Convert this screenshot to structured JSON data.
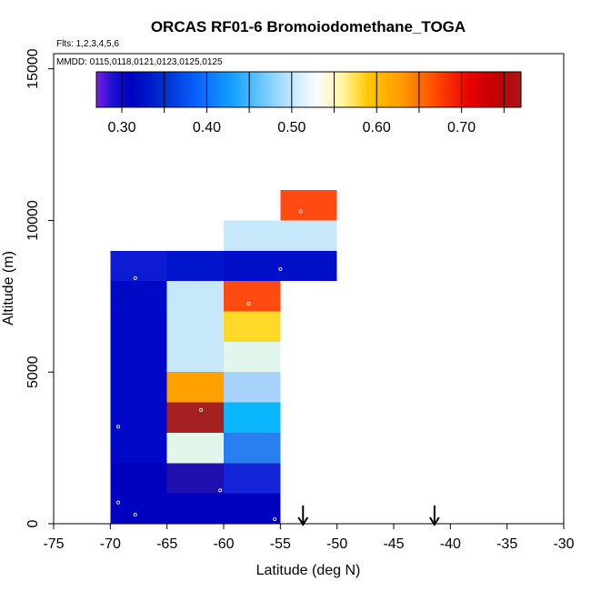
{
  "chart_data": {
    "type": "heatmap",
    "title": "ORCAS RF01-6 Bromoiodomethane_TOGA",
    "flights_note": "Flts: 1,2,3,4,5,6",
    "dates_note": "MMDD: 0115,0118,0121,0123,0125,0125",
    "xlabel": "Latitude (deg N)",
    "ylabel": "Altitude (m)",
    "xlim": [
      -75,
      -30
    ],
    "ylim": [
      0,
      15500
    ],
    "x_ticks": [
      -75,
      -70,
      -65,
      -60,
      -55,
      -50,
      -45,
      -40,
      -35,
      -30
    ],
    "y_ticks": [
      0,
      5000,
      10000,
      15000
    ],
    "colorbar": {
      "range": [
        0.27,
        0.77
      ],
      "tick_values": [
        0.3,
        0.4,
        0.5,
        0.6,
        0.7
      ],
      "tick_labels": [
        "0.30",
        "0.40",
        "0.50",
        "0.60",
        "0.70"
      ],
      "boundaries": [
        0.3,
        0.35,
        0.4,
        0.45,
        0.5,
        0.55,
        0.6,
        0.65,
        0.7,
        0.75
      ],
      "color_stops": [
        {
          "v": 0.27,
          "c": "#7a1fe0"
        },
        {
          "v": 0.29,
          "c": "#1a0fd0"
        },
        {
          "v": 0.31,
          "c": "#0000c0"
        },
        {
          "v": 0.35,
          "c": "#0030d0"
        },
        {
          "v": 0.39,
          "c": "#0a64ff"
        },
        {
          "v": 0.43,
          "c": "#14a0ff"
        },
        {
          "v": 0.47,
          "c": "#78cdff"
        },
        {
          "v": 0.51,
          "c": "#d8efff"
        },
        {
          "v": 0.53,
          "c": "#fbfbff"
        },
        {
          "v": 0.56,
          "c": "#fff5a0"
        },
        {
          "v": 0.59,
          "c": "#ffc800"
        },
        {
          "v": 0.63,
          "c": "#ff9a00"
        },
        {
          "v": 0.67,
          "c": "#ff4800"
        },
        {
          "v": 0.71,
          "c": "#e80000"
        },
        {
          "v": 0.74,
          "c": "#c00000"
        },
        {
          "v": 0.77,
          "c": "#a81818"
        }
      ]
    },
    "cells": [
      {
        "lat": [
          -70,
          -65
        ],
        "alt": [
          8000,
          9000
        ],
        "value": 0.315,
        "color": "#0d1cd2"
      },
      {
        "lat": [
          -70,
          -65
        ],
        "alt": [
          7000,
          8000
        ],
        "value": 0.305,
        "color": "#0009c6"
      },
      {
        "lat": [
          -70,
          -65
        ],
        "alt": [
          6000,
          7000
        ],
        "value": 0.302,
        "color": "#0007c8"
      },
      {
        "lat": [
          -70,
          -65
        ],
        "alt": [
          5000,
          6000
        ],
        "value": 0.302,
        "color": "#0007c8"
      },
      {
        "lat": [
          -70,
          -65
        ],
        "alt": [
          4000,
          5000
        ],
        "value": 0.302,
        "color": "#0007c8"
      },
      {
        "lat": [
          -70,
          -65
        ],
        "alt": [
          3000,
          4000
        ],
        "value": 0.302,
        "color": "#0007c8"
      },
      {
        "lat": [
          -70,
          -65
        ],
        "alt": [
          2000,
          3000
        ],
        "value": 0.302,
        "color": "#0007c8"
      },
      {
        "lat": [
          -70,
          -65
        ],
        "alt": [
          1000,
          2000
        ],
        "value": 0.3,
        "color": "#0002c0"
      },
      {
        "lat": [
          -70,
          -65
        ],
        "alt": [
          0,
          1000
        ],
        "value": 0.3,
        "color": "#0002c0"
      },
      {
        "lat": [
          -65,
          -60
        ],
        "alt": [
          8000,
          9000
        ],
        "value": 0.305,
        "color": "#0015cc"
      },
      {
        "lat": [
          -65,
          -60
        ],
        "alt": [
          7000,
          8000
        ],
        "value": 0.51,
        "color": "#c7e7fb"
      },
      {
        "lat": [
          -65,
          -60
        ],
        "alt": [
          6000,
          7000
        ],
        "value": 0.51,
        "color": "#c7e7fb"
      },
      {
        "lat": [
          -65,
          -60
        ],
        "alt": [
          5000,
          6000
        ],
        "value": 0.51,
        "color": "#c7e7fb"
      },
      {
        "lat": [
          -65,
          -60
        ],
        "alt": [
          4000,
          5000
        ],
        "value": 0.625,
        "color": "#ffa000"
      },
      {
        "lat": [
          -65,
          -60
        ],
        "alt": [
          3000,
          4000
        ],
        "value": 0.765,
        "color": "#a52020"
      },
      {
        "lat": [
          -65,
          -60
        ],
        "alt": [
          2000,
          3000
        ],
        "value": 0.53,
        "color": "#e2f7ec"
      },
      {
        "lat": [
          -65,
          -60
        ],
        "alt": [
          1000,
          2000
        ],
        "value": 0.29,
        "color": "#2010b0"
      },
      {
        "lat": [
          -65,
          -60
        ],
        "alt": [
          0,
          1000
        ],
        "value": 0.3,
        "color": "#0002c0"
      },
      {
        "lat": [
          -60,
          -55
        ],
        "alt": [
          9000,
          10000
        ],
        "value": 0.51,
        "color": "#c7e7fb"
      },
      {
        "lat": [
          -60,
          -55
        ],
        "alt": [
          8000,
          9000
        ],
        "value": 0.31,
        "color": "#0010c8"
      },
      {
        "lat": [
          -60,
          -55
        ],
        "alt": [
          7000,
          8000
        ],
        "value": 0.68,
        "color": "#ff4a12"
      },
      {
        "lat": [
          -60,
          -55
        ],
        "alt": [
          6000,
          7000
        ],
        "value": 0.595,
        "color": "#ffd928"
      },
      {
        "lat": [
          -60,
          -55
        ],
        "alt": [
          5000,
          6000
        ],
        "value": 0.53,
        "color": "#e2f7ec"
      },
      {
        "lat": [
          -60,
          -55
        ],
        "alt": [
          4000,
          5000
        ],
        "value": 0.48,
        "color": "#a7d3fb"
      },
      {
        "lat": [
          -60,
          -55
        ],
        "alt": [
          3000,
          4000
        ],
        "value": 0.44,
        "color": "#0ab7ff"
      },
      {
        "lat": [
          -60,
          -55
        ],
        "alt": [
          2000,
          3000
        ],
        "value": 0.39,
        "color": "#2a7ff0"
      },
      {
        "lat": [
          -60,
          -55
        ],
        "alt": [
          1000,
          2000
        ],
        "value": 0.33,
        "color": "#1224d6"
      },
      {
        "lat": [
          -60,
          -55
        ],
        "alt": [
          0,
          1000
        ],
        "value": 0.3,
        "color": "#0002c0"
      },
      {
        "lat": [
          -55,
          -50
        ],
        "alt": [
          10000,
          11000
        ],
        "value": 0.68,
        "color": "#ff4a12"
      },
      {
        "lat": [
          -55,
          -50
        ],
        "alt": [
          9000,
          10000
        ],
        "value": 0.51,
        "color": "#c7e7fb"
      },
      {
        "lat": [
          -55,
          -50
        ],
        "alt": [
          8000,
          9000
        ],
        "value": 0.31,
        "color": "#0010c8"
      }
    ],
    "sample_points": [
      {
        "lat": -67.8,
        "alt": 8100
      },
      {
        "lat": -69.3,
        "alt": 3200
      },
      {
        "lat": -69.3,
        "alt": 700
      },
      {
        "lat": -67.8,
        "alt": 300
      },
      {
        "lat": -62.0,
        "alt": 3750
      },
      {
        "lat": -60.3,
        "alt": 1100
      },
      {
        "lat": -57.8,
        "alt": 7250
      },
      {
        "lat": -55.0,
        "alt": 8400
      },
      {
        "lat": -55.5,
        "alt": 150
      },
      {
        "lat": -53.2,
        "alt": 10300
      }
    ],
    "arrows": [
      {
        "lat": -53.0,
        "label": "flight marker"
      },
      {
        "lat": -41.4,
        "label": "flight marker"
      }
    ]
  }
}
